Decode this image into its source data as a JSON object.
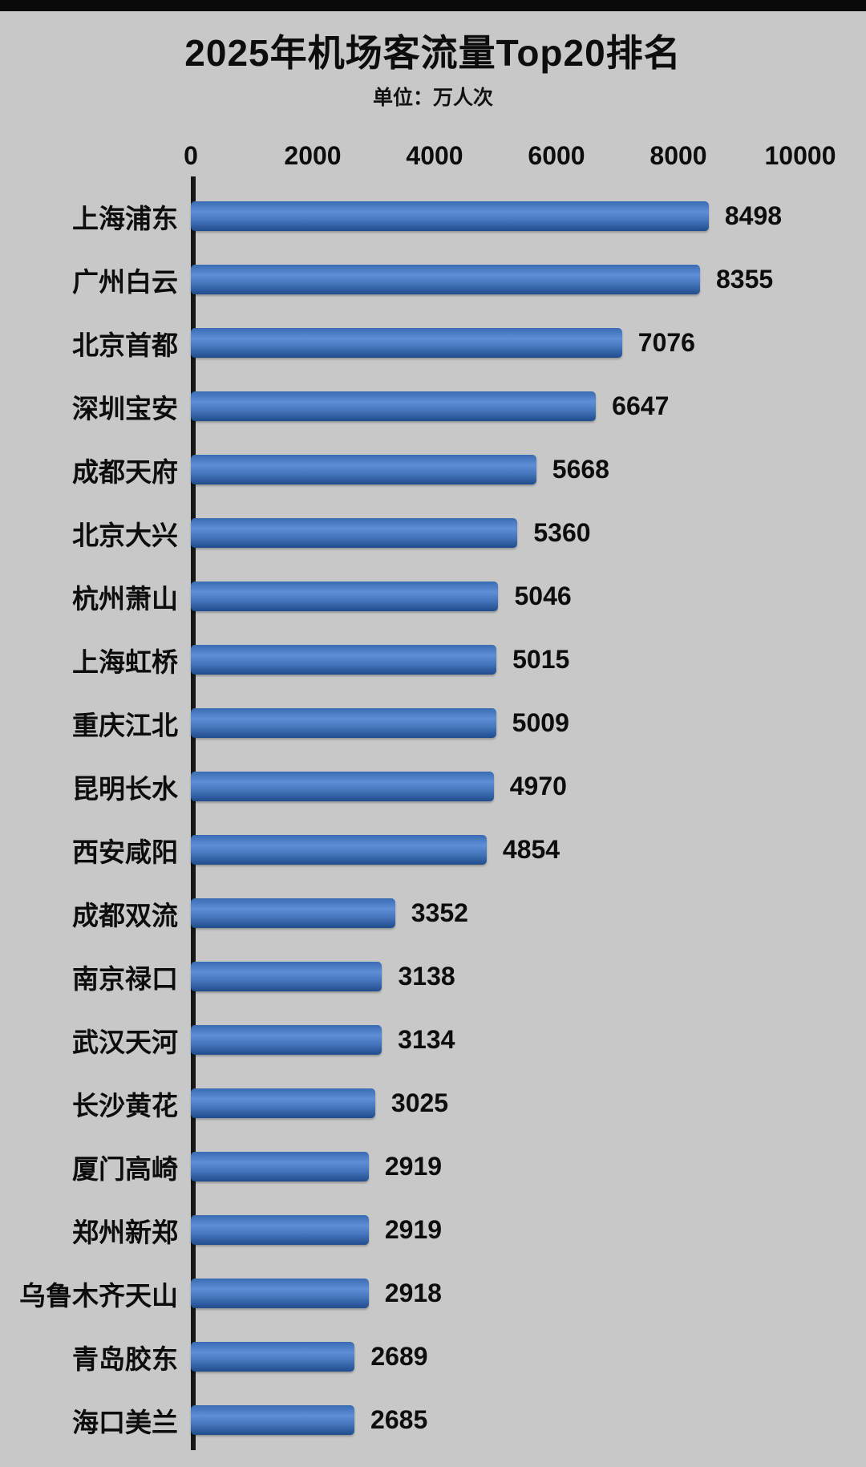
{
  "page": {
    "title": "2025年机场客流量Top20排名",
    "unit_label": "单位：万人次"
  },
  "colors": {
    "background": "#c8c8c8",
    "top_strip": "#0a0a0a",
    "axis_line": "#161616",
    "bar_top": "#3a6cb3",
    "bar_highlight": "#5e8fd6",
    "bar_mid": "#4474ba",
    "bar_bottom": "#1f4c8c",
    "text": "#0d0d0d"
  },
  "chart_data": {
    "type": "bar",
    "orientation": "horizontal",
    "title": "2025年机场客流量Top20排名",
    "subtitle": "单位：万人次",
    "xlabel": "",
    "ylabel": "",
    "xlim": [
      0,
      10000
    ],
    "x_ticks": [
      0,
      2000,
      4000,
      6000,
      8000,
      10000
    ],
    "grid": false,
    "legend": false,
    "categories": [
      "上海浦东",
      "广州白云",
      "北京首都",
      "深圳宝安",
      "成都天府",
      "北京大兴",
      "杭州萧山",
      "上海虹桥",
      "重庆江北",
      "昆明长水",
      "西安咸阳",
      "成都双流",
      "南京禄口",
      "武汉天河",
      "长沙黄花",
      "厦门高崎",
      "郑州新郑",
      "乌鲁木齐天山",
      "青岛胶东",
      "海口美兰"
    ],
    "values": [
      8498,
      8355,
      7076,
      6647,
      5668,
      5360,
      5046,
      5015,
      5009,
      4970,
      4854,
      3352,
      3138,
      3134,
      3025,
      2919,
      2919,
      2918,
      2689,
      2685
    ]
  }
}
